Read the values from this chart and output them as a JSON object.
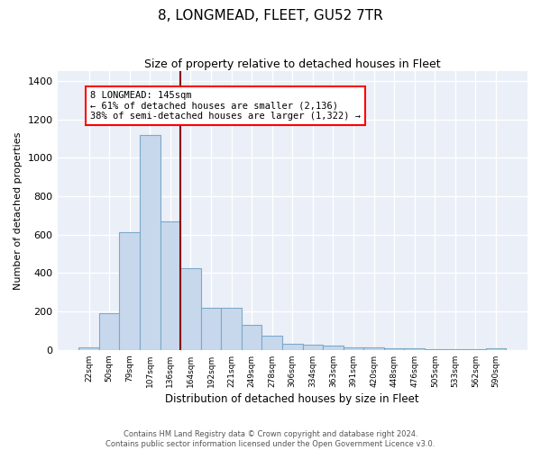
{
  "title": "8, LONGMEAD, FLEET, GU52 7TR",
  "subtitle": "Size of property relative to detached houses in Fleet",
  "xlabel": "Distribution of detached houses by size in Fleet",
  "ylabel": "Number of detached properties",
  "categories": [
    "22sqm",
    "50sqm",
    "79sqm",
    "107sqm",
    "136sqm",
    "164sqm",
    "192sqm",
    "221sqm",
    "249sqm",
    "278sqm",
    "306sqm",
    "334sqm",
    "363sqm",
    "391sqm",
    "420sqm",
    "448sqm",
    "476sqm",
    "505sqm",
    "533sqm",
    "562sqm",
    "590sqm"
  ],
  "values": [
    15,
    193,
    612,
    1120,
    670,
    425,
    220,
    218,
    130,
    75,
    30,
    28,
    22,
    15,
    12,
    8,
    8,
    6,
    6,
    5,
    10
  ],
  "bar_color": "#c8d8ec",
  "bar_edge_color": "#7aaac8",
  "background_color": "#eaeff8",
  "grid_color": "#d8dff0",
  "ylim": [
    0,
    1450
  ],
  "yticks": [
    0,
    200,
    400,
    600,
    800,
    1000,
    1200,
    1400
  ],
  "red_line_index": 4.5,
  "annotation_text": "8 LONGMEAD: 145sqm\n← 61% of detached houses are smaller (2,136)\n38% of semi-detached houses are larger (1,322) →",
  "footer_line1": "Contains HM Land Registry data © Crown copyright and database right 2024.",
  "footer_line2": "Contains public sector information licensed under the Open Government Licence v3.0."
}
